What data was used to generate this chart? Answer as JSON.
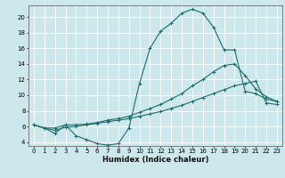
{
  "title": "",
  "xlabel": "Humidex (Indice chaleur)",
  "ylabel": "",
  "bg_color": "#cce8ec",
  "line_color": "#1a6b6b",
  "grid_color": "#ffffff",
  "xlim": [
    -0.5,
    23.5
  ],
  "ylim": [
    3.5,
    21.5
  ],
  "xticks": [
    0,
    1,
    2,
    3,
    4,
    5,
    6,
    7,
    8,
    9,
    10,
    11,
    12,
    13,
    14,
    15,
    16,
    17,
    18,
    19,
    20,
    21,
    22,
    23
  ],
  "yticks": [
    4,
    6,
    8,
    10,
    12,
    14,
    16,
    18,
    20
  ],
  "line1_x": [
    0,
    1,
    2,
    3,
    4,
    5,
    6,
    7,
    8,
    9,
    10,
    11,
    12,
    13,
    14,
    15,
    16,
    17,
    18,
    19,
    20,
    21,
    22,
    23
  ],
  "line1_y": [
    6.2,
    5.8,
    5.1,
    6.2,
    4.8,
    4.3,
    3.8,
    3.6,
    3.8,
    5.8,
    11.5,
    16.0,
    18.2,
    19.2,
    20.5,
    21.0,
    20.5,
    18.7,
    15.8,
    15.8,
    10.5,
    10.2,
    9.5,
    9.2
  ],
  "line2_x": [
    0,
    1,
    2,
    3,
    4,
    5,
    6,
    7,
    8,
    9,
    10,
    11,
    12,
    13,
    14,
    15,
    16,
    17,
    18,
    19,
    20,
    21,
    22,
    23
  ],
  "line2_y": [
    6.2,
    5.8,
    5.8,
    6.2,
    6.2,
    6.3,
    6.5,
    6.8,
    7.0,
    7.3,
    7.8,
    8.3,
    8.8,
    9.5,
    10.2,
    11.2,
    12.0,
    13.0,
    13.8,
    14.0,
    12.5,
    10.8,
    9.8,
    9.2
  ],
  "line3_x": [
    0,
    1,
    2,
    3,
    4,
    5,
    6,
    7,
    8,
    9,
    10,
    11,
    12,
    13,
    14,
    15,
    16,
    17,
    18,
    19,
    20,
    21,
    22,
    23
  ],
  "line3_y": [
    6.2,
    5.8,
    5.5,
    5.9,
    6.0,
    6.2,
    6.4,
    6.6,
    6.8,
    7.0,
    7.3,
    7.6,
    7.9,
    8.3,
    8.7,
    9.2,
    9.7,
    10.2,
    10.7,
    11.2,
    11.5,
    11.8,
    9.0,
    8.8
  ]
}
